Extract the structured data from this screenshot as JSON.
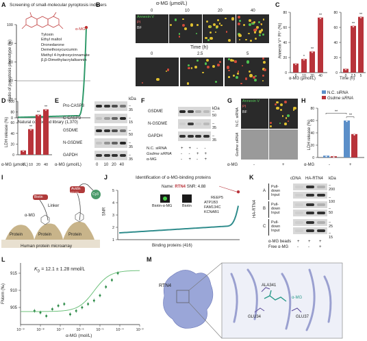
{
  "panel_labels": [
    "A",
    "B",
    "C",
    "D",
    "E",
    "F",
    "G",
    "H",
    "I",
    "J",
    "K",
    "L",
    "M"
  ],
  "A": {
    "title": "Screening of small-molecular pyroptosis inducers",
    "ylabel": "Ratio of pyroptosis phenotype (%)",
    "xlabel": "Natural compound library (1,370)",
    "yticks": [
      "0",
      "20",
      "40",
      "60",
      "80",
      "100"
    ],
    "compounds": [
      "α-MG",
      "Tylosin",
      "Ethyl maltol",
      "Dronedarone",
      "Demethoxycurcumin",
      "Methyl 4-hydroxycinnamate",
      "β,β-Dimethylacrylalkannin"
    ]
  },
  "B": {
    "header": "α-MG (μmol/L)",
    "doses": [
      "0",
      "10",
      "20",
      "40"
    ],
    "time_header": "Time (h)",
    "times": [
      "0",
      "2.5",
      "5"
    ],
    "annexin": "Annexin V",
    "pi": "PI",
    "bf": "BF"
  },
  "C": {
    "ylabel": "Annexin V⁺ PI⁺ (%)",
    "left": {
      "xlabel": "α-MG (μmol/L)",
      "ticks": [
        "0",
        "10",
        "20",
        "40"
      ],
      "values": [
        12,
        18,
        28,
        73
      ],
      "sig": [
        "",
        "*",
        "**",
        "**"
      ]
    },
    "right": {
      "xlabel": "Time (h)",
      "ticks": [
        "0",
        "2.5",
        "5"
      ],
      "values": [
        5,
        62,
        74
      ],
      "sig": [
        "",
        "**",
        "**"
      ]
    },
    "yticks": [
      "0",
      "20",
      "40",
      "60",
      "80"
    ],
    "yticks_right": [
      "0",
      "20",
      "40",
      "60",
      "80"
    ]
  },
  "D": {
    "ylabel": "LDH release (%)",
    "xlabel": "α-MG (μmol/L)",
    "ticks": [
      "0",
      "10",
      "20",
      "40"
    ],
    "values": [
      8,
      48,
      75,
      85
    ],
    "sig": [
      "",
      "**",
      "**",
      "**"
    ],
    "yticks": [
      "0",
      "20",
      "40",
      "60",
      "80",
      "100"
    ]
  },
  "E": {
    "rows": [
      "Pro-CASP3",
      "C-CASP3",
      "GSDME",
      "N-GSDME",
      "GAPDH"
    ],
    "kda_label": "kDa",
    "kda": [
      "35",
      "15",
      "50",
      "35",
      "35"
    ],
    "xlabel": "α-MG (μmol/L)",
    "ticks": [
      "0",
      "10",
      "20",
      "40"
    ]
  },
  "F": {
    "rows": [
      "GSDME",
      "N-GSDME",
      "GAPDH"
    ],
    "kda_label": "kDa",
    "kda": [
      "50",
      "35",
      "35"
    ],
    "conditions": [
      {
        "name": "N.C. siRNA",
        "marks": [
          "+",
          "+",
          "-",
          "-"
        ]
      },
      {
        "name": "Gsdme siRNA",
        "marks": [
          "-",
          "-",
          "+",
          "+"
        ]
      },
      {
        "name": "α-MG",
        "marks": [
          "-",
          "+",
          "-",
          "+"
        ]
      }
    ]
  },
  "G": {
    "annexin": "Annexin V",
    "pi": "PI",
    "bf": "BF",
    "row_nc": "N.C. siRNA",
    "row_gsdme": "Gsdme siRNA",
    "xlabel": "α-MG",
    "marks": [
      "-",
      "+"
    ]
  },
  "H": {
    "ylabel": "LDH release (%)",
    "legend": [
      "N.C. siRNA",
      "Gsdme siRNA"
    ],
    "colors": {
      "nc": "#5b8fc9",
      "gsdme": "#b8333a"
    },
    "xlabel": "α-MG",
    "marks": [
      "-",
      "+"
    ],
    "values_nc": [
      3,
      60
    ],
    "values_gsdme": [
      2,
      38
    ],
    "sig": [
      "**",
      "**"
    ],
    "yticks": [
      "0",
      "20",
      "40",
      "60",
      "80"
    ]
  },
  "I": {
    "biotin": "Biotin",
    "linker": "Linker",
    "amg": "α-MG",
    "avidin": "Avidin",
    "cy": "Cy3",
    "protein": "Protein",
    "caption": "Human protein microarray"
  },
  "J": {
    "title": "Identification of α-MG-binding proteins",
    "name_label": "Name:",
    "name_value": "RTN4",
    "snr_label": "SNR: 4.88",
    "ylabel": "SNR",
    "xlabel": "Binding proteins (416)",
    "yticks": [
      "1",
      "2",
      "3",
      "4",
      "5"
    ],
    "proteins": [
      "REEP5",
      "ATP1B3",
      "FAM134C",
      "KCNAB1"
    ],
    "probe1": "Biotin-α-MG",
    "probe2": "Biotin"
  },
  "K": {
    "header1": "cDNA",
    "header2": "HA-RTN4",
    "side": "HA-RTN4",
    "sections": [
      "A",
      "B",
      "C"
    ],
    "row_labels": [
      "Pull-down",
      "Input"
    ],
    "kda_label": "kDa",
    "kda": [
      "200",
      "100",
      "50",
      "25",
      "15"
    ],
    "beads_label": "α-MG beads",
    "free_label": "Free α-MG",
    "beads_marks": [
      "+",
      "+",
      "+"
    ],
    "free_marks": [
      "-",
      "-",
      "+"
    ]
  },
  "L": {
    "kd": "K",
    "kd_sub": "D",
    "kd_value": "= 12.1 ± 1.28 nmol/L",
    "ylabel": "FNorm (‰)",
    "xlabel": "α-MG (mol/L)",
    "yticks": [
      "905",
      "910",
      "915"
    ],
    "xticks": [
      "10⁻⁹",
      "10⁻⁸",
      "10⁻⁷",
      "10⁻⁶",
      "10⁻⁵",
      "10⁻⁴",
      "10⁻³"
    ],
    "chart_data": {
      "type": "scatter",
      "x_log10": [
        -8.3,
        -8.0,
        -7.7,
        -7.4,
        -7.1,
        -6.8,
        -6.5,
        -6.2,
        -5.9,
        -5.6,
        -5.3,
        -5.0,
        -4.7,
        -4.4,
        -4.1
      ],
      "y": [
        904,
        903.5,
        902.5,
        904.5,
        905.5,
        906,
        903,
        904,
        905,
        906,
        907,
        908.5,
        911,
        913,
        915
      ]
    }
  },
  "M": {
    "protein": "RTN4",
    "residues": [
      "ALA341",
      "GLU34",
      "GLU37"
    ],
    "ligand": "α-MG"
  }
}
